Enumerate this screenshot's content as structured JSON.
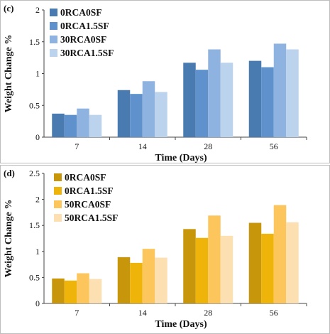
{
  "chart_data": [
    {
      "type": "bar",
      "panel_label": "(c)",
      "categories": [
        "7",
        "14",
        "28",
        "56"
      ],
      "series": [
        {
          "name": "0RCA0SF",
          "color": "#4a7bb0",
          "values": [
            0.37,
            0.74,
            1.17,
            1.2
          ]
        },
        {
          "name": "0RCA1.5SF",
          "color": "#5f92cc",
          "values": [
            0.35,
            0.68,
            1.06,
            1.1
          ]
        },
        {
          "name": "30RCA0SF",
          "color": "#8fb3e0",
          "values": [
            0.45,
            0.88,
            1.38,
            1.47
          ]
        },
        {
          "name": "30RCA1.5SF",
          "color": "#bcd3ee",
          "values": [
            0.35,
            0.71,
            1.17,
            1.38
          ]
        }
      ],
      "xlabel": "Time (Days)",
      "ylabel": "Weight Change %",
      "ylim": [
        0,
        2
      ],
      "yticks": [
        "0",
        "0.5",
        "1",
        "1.5",
        "2"
      ],
      "grid": false,
      "legend_position": "top-left"
    },
    {
      "type": "bar",
      "panel_label": "(d)",
      "categories": [
        "7",
        "14",
        "28",
        "56"
      ],
      "series": [
        {
          "name": "0RCA0SF",
          "color": "#c7960a",
          "values": [
            0.48,
            0.89,
            1.43,
            1.55
          ]
        },
        {
          "name": "0RCA1.5SF",
          "color": "#eeb40a",
          "values": [
            0.44,
            0.78,
            1.26,
            1.34
          ]
        },
        {
          "name": "50RCA0SF",
          "color": "#fcc65c",
          "values": [
            0.58,
            1.05,
            1.69,
            1.89
          ]
        },
        {
          "name": "50RCA1.5SF",
          "color": "#fde0b2",
          "values": [
            0.47,
            0.88,
            1.3,
            1.56
          ]
        }
      ],
      "xlabel": "Time (Days)",
      "ylabel": "Weight Change %",
      "ylim": [
        0,
        2.5
      ],
      "yticks": [
        "0",
        "0.5",
        "1",
        "1.5",
        "2",
        "2.5"
      ],
      "grid": false,
      "legend_position": "top-left"
    }
  ]
}
